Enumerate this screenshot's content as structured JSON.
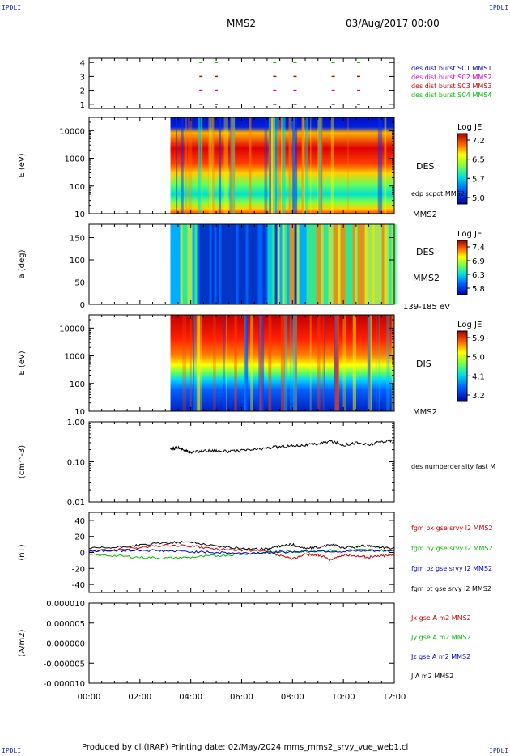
{
  "corners": {
    "tl": "IPDLI",
    "tr": "IPDLI",
    "bl": "IPDLI",
    "br": "IPDLI"
  },
  "header": {
    "spacecraft": "MMS2",
    "date": "03/Aug/2017 00:00"
  },
  "footer": {
    "text": "Produced by cl (IRAP)   Printing date: 02/May/2024   mms_mms2_srvy_vue_web1.cl"
  },
  "colors": {
    "blue": "#0000cc",
    "magenta": "#cc00cc",
    "red": "#cc0000",
    "green": "#00bb00",
    "black": "#000000"
  },
  "time_axis": {
    "ticks": [
      "00:00",
      "02:00",
      "04:00",
      "06:00",
      "08:00",
      "10:00",
      "12:00"
    ],
    "range_hours": [
      0,
      12
    ],
    "data_start_hour": 3.2
  },
  "chart_data": [
    {
      "type": "scatter",
      "id": "burst",
      "ylim": [
        0.7,
        4.3
      ],
      "yticks": [
        "1",
        "2",
        "3",
        "4"
      ],
      "y_values": [
        1,
        2,
        3,
        4
      ],
      "legend": [
        {
          "label": "des dist burst SC1 MMS1",
          "color": "#0000cc"
        },
        {
          "label": "des dist burst SC2 MMS2",
          "color": "#cc00cc"
        },
        {
          "label": "des dist burst SC3 MMS3",
          "color": "#cc0000"
        },
        {
          "label": "des dist burst SC4 MMS4",
          "color": "#00bb00"
        }
      ],
      "burst_hours": [
        4.4,
        5.0,
        7.3,
        8.1,
        9.6,
        10.6
      ]
    },
    {
      "type": "heatmap",
      "id": "des_energy",
      "ylabel": "E (eV)",
      "yticks": [
        "10",
        "100",
        "1000",
        "10000"
      ],
      "ylog": true,
      "ylim": [
        10,
        30000
      ],
      "labels": [
        "DES",
        "edp scpot MMS2",
        "MMS2"
      ],
      "colorbar": {
        "title": "Log JE",
        "ticks": [
          "7.2",
          "6.5",
          "5.7",
          "5.0"
        ],
        "range": [
          5.0,
          7.2
        ]
      }
    },
    {
      "type": "heatmap",
      "id": "des_pitch",
      "ylabel": "a (deg)",
      "yticks": [
        "0",
        "50",
        "100",
        "150"
      ],
      "ylim": [
        0,
        180
      ],
      "labels": [
        "DES",
        "MMS2",
        "139-185 eV"
      ],
      "colorbar": {
        "title": "Log JE",
        "ticks": [
          "7.4",
          "6.9",
          "6.3",
          "5.8"
        ],
        "range": [
          5.8,
          7.4
        ]
      }
    },
    {
      "type": "heatmap",
      "id": "dis_energy",
      "ylabel": "E (eV)",
      "yticks": [
        "10",
        "100",
        "1000",
        "10000"
      ],
      "ylog": true,
      "ylim": [
        10,
        30000
      ],
      "labels": [
        "DIS",
        "MMS2"
      ],
      "colorbar": {
        "title": "Log JE",
        "ticks": [
          "5.9",
          "5.0",
          "4.1",
          "3.2"
        ],
        "range": [
          3.2,
          5.9
        ]
      }
    },
    {
      "type": "line",
      "id": "density",
      "ylabel": "(cm^-3)",
      "yticks": [
        "0.01",
        "0.10",
        "1.00"
      ],
      "ylog": true,
      "ylim": [
        0.01,
        1.0
      ],
      "series": [
        {
          "name": "des numberdensity fast M",
          "color": "#000000",
          "x": [
            3.2,
            3.5,
            3.8,
            4.0,
            4.5,
            5.0,
            5.5,
            6.0,
            6.5,
            7.0,
            7.5,
            8.0,
            8.5,
            9.0,
            9.5,
            10.0,
            10.5,
            11.0,
            11.5,
            12.0
          ],
          "y": [
            0.2,
            0.23,
            0.19,
            0.17,
            0.19,
            0.19,
            0.18,
            0.19,
            0.2,
            0.22,
            0.24,
            0.25,
            0.26,
            0.28,
            0.33,
            0.26,
            0.3,
            0.26,
            0.32,
            0.34
          ]
        }
      ]
    },
    {
      "type": "line",
      "id": "fgm",
      "ylabel": "(nT)",
      "yticks": [
        "-40",
        "-20",
        "0",
        "20",
        "40"
      ],
      "ylim": [
        -50,
        50
      ],
      "series": [
        {
          "name": "fgm bx gse srvy l2 MMS2",
          "color": "#cc0000",
          "x": [
            0,
            1,
            2,
            3,
            4,
            5,
            6,
            7,
            7.5,
            8,
            8.5,
            9,
            9.5,
            10,
            10.5,
            11,
            11.5,
            12
          ],
          "y": [
            2,
            3,
            6,
            9,
            8,
            4,
            3,
            1,
            -4,
            -8,
            -2,
            -3,
            -9,
            -3,
            -4,
            -6,
            -4,
            -3
          ]
        },
        {
          "name": "fgm by gse srvy l2 MMS2",
          "color": "#00bb00",
          "x": [
            0,
            1,
            2,
            3,
            4,
            5,
            6,
            7,
            8,
            9,
            10,
            11,
            12
          ],
          "y": [
            -3,
            -4,
            -6,
            -7,
            -6,
            -4,
            -2,
            0,
            1,
            2,
            3,
            3,
            2
          ]
        },
        {
          "name": "fgm bz gse srvy l2 MMS2",
          "color": "#0000cc",
          "x": [
            0,
            1,
            2,
            3,
            4,
            5,
            6,
            7,
            8,
            9,
            10,
            11,
            12
          ],
          "y": [
            2,
            2,
            3,
            2,
            1,
            0,
            -1,
            0,
            1,
            2,
            1,
            2,
            2
          ]
        },
        {
          "name": "fgm bt gse srvy l2 MMS2",
          "color": "#000000",
          "x": [
            0,
            1,
            2,
            3,
            4,
            5,
            6,
            7,
            7.5,
            8,
            8.5,
            9,
            9.5,
            10,
            10.5,
            11,
            11.5,
            12
          ],
          "y": [
            5,
            6,
            9,
            12,
            13,
            8,
            5,
            4,
            8,
            10,
            5,
            6,
            10,
            6,
            7,
            9,
            6,
            5
          ]
        }
      ]
    },
    {
      "type": "line",
      "id": "current",
      "ylabel": "(A/m2)",
      "yticks": [
        "-0.000010",
        "-0.000005",
        "0.000000",
        "0.000005",
        "0.000010"
      ],
      "ylim": [
        -1e-05,
        1e-05
      ],
      "series": [
        {
          "name": "Jx gse A m2 MMS2",
          "color": "#cc0000",
          "x": [
            0,
            12
          ],
          "y": [
            0,
            0
          ]
        },
        {
          "name": "Jy gse A m2 MMS2",
          "color": "#00bb00",
          "x": [
            0,
            12
          ],
          "y": [
            0,
            0
          ]
        },
        {
          "name": "Jz gse A m2 MMS2",
          "color": "#0000cc",
          "x": [
            0,
            12
          ],
          "y": [
            0,
            0
          ]
        },
        {
          "name": "J A m2 MMS2",
          "color": "#000000",
          "x": [
            0,
            12
          ],
          "y": [
            0,
            0
          ]
        }
      ]
    }
  ]
}
